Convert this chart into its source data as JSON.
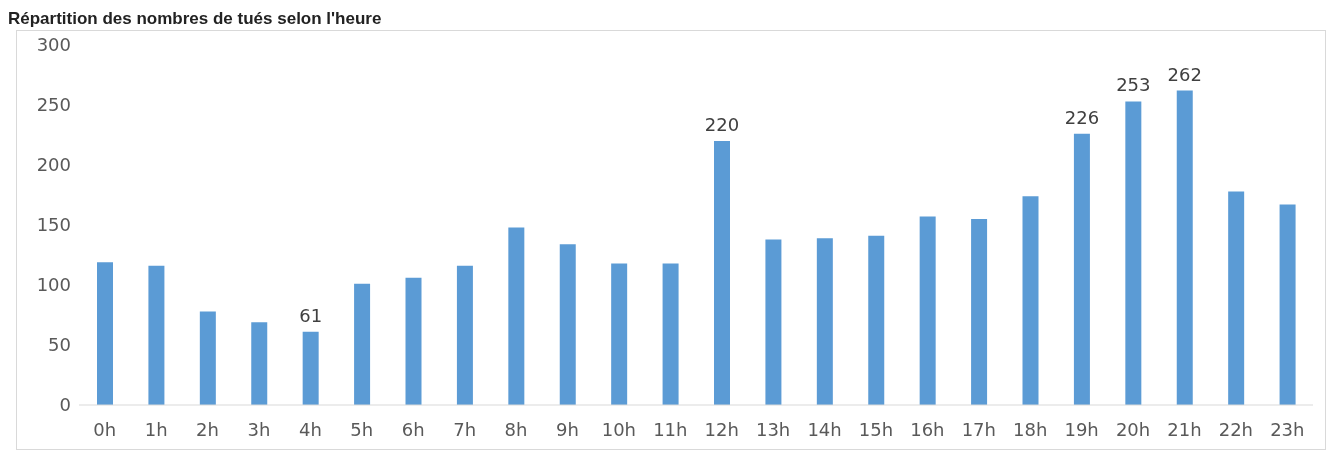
{
  "chart_data": {
    "type": "bar",
    "title": "Répartition des nombres de tués selon l'heure",
    "categories": [
      "0h",
      "1h",
      "2h",
      "3h",
      "4h",
      "5h",
      "6h",
      "7h",
      "8h",
      "9h",
      "10h",
      "11h",
      "12h",
      "13h",
      "14h",
      "15h",
      "16h",
      "17h",
      "18h",
      "19h",
      "20h",
      "21h",
      "22h",
      "23h"
    ],
    "values": [
      119,
      116,
      78,
      69,
      61,
      101,
      106,
      116,
      148,
      134,
      118,
      118,
      220,
      138,
      139,
      141,
      157,
      155,
      174,
      226,
      253,
      262,
      178,
      167
    ],
    "value_labels": [
      null,
      null,
      null,
      null,
      "61",
      null,
      null,
      null,
      null,
      null,
      null,
      null,
      "220",
      null,
      null,
      null,
      null,
      null,
      null,
      "226",
      "253",
      "262",
      null,
      null
    ],
    "color": "#5b9bd5",
    "ylim": [
      0,
      300
    ],
    "yticks": [
      0,
      50,
      100,
      150,
      200,
      250,
      300
    ],
    "grid": false,
    "legend": false
  }
}
